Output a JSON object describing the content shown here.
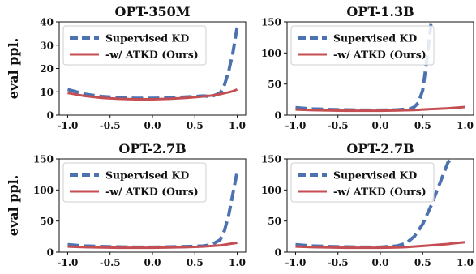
{
  "colors": {
    "supervised": "#4c72b0",
    "atkd": "#c44e52",
    "legend_border": "#cfcfcf",
    "axis": "#111111"
  },
  "chart_data": [
    {
      "type": "line",
      "title": "OPT-350M",
      "ylabel": "eval ppl.",
      "xlim": [
        -1.1,
        1.1
      ],
      "ylim": [
        0,
        40
      ],
      "xticks": [
        "-1.0",
        "-0.5",
        "0.0",
        "0.5",
        "1.0"
      ],
      "yticks": [
        "0",
        "10",
        "20",
        "30",
        "40"
      ],
      "legend": "top-left",
      "x": [
        -1.0,
        -0.8,
        -0.6,
        -0.4,
        -0.2,
        0.0,
        0.2,
        0.4,
        0.6,
        0.7,
        0.8,
        0.85,
        0.9,
        0.95,
        1.0
      ],
      "series": [
        {
          "name": "Supervised KD",
          "style": "dashed",
          "values": [
            11,
            9,
            8,
            7.5,
            7.2,
            7.2,
            7.4,
            7.8,
            8.2,
            8.0,
            9.5,
            13,
            19,
            27,
            38
          ]
        },
        {
          "name": "-w/ ATKD (Ours)",
          "style": "solid",
          "values": [
            9.5,
            8.2,
            7.4,
            7.0,
            6.8,
            6.8,
            7.0,
            7.4,
            8.0,
            8.4,
            9.0,
            9.4,
            9.8,
            10.3,
            11
          ]
        }
      ]
    },
    {
      "type": "line",
      "title": "OPT-1.3B",
      "ylabel": "",
      "xlim": [
        -1.1,
        1.1
      ],
      "ylim": [
        0,
        150
      ],
      "xticks": [
        "-1.0",
        "-0.5",
        "0.0",
        "0.5",
        "1.0"
      ],
      "yticks": [
        "0",
        "50",
        "100",
        "150"
      ],
      "legend": "top-left",
      "x": [
        -1.0,
        -0.8,
        -0.6,
        -0.4,
        -0.2,
        0.0,
        0.2,
        0.35,
        0.4,
        0.45,
        0.5,
        0.55,
        0.6,
        0.65,
        0.8,
        1.0
      ],
      "series": [
        {
          "name": "Supervised KD",
          "style": "dashed",
          "values": [
            12,
            10,
            9,
            8.5,
            8,
            8,
            8.5,
            10,
            13,
            20,
            40,
            90,
            150,
            null,
            null,
            null
          ]
        },
        {
          "name": "-w/ ATKD (Ours)",
          "style": "solid",
          "values": [
            9,
            8,
            7.5,
            7,
            7,
            7,
            7.5,
            8,
            8.2,
            8.5,
            9,
            9.3,
            9.7,
            10,
            11,
            13
          ]
        }
      ]
    },
    {
      "type": "line",
      "title": "OPT-2.7B",
      "ylabel": "eval ppl.",
      "xlim": [
        -1.1,
        1.1
      ],
      "ylim": [
        0,
        150
      ],
      "xticks": [
        "-1.0",
        "-0.5",
        "0.0",
        "0.5",
        "1.0"
      ],
      "yticks": [
        "0",
        "50",
        "100",
        "150"
      ],
      "legend": "top-left",
      "x": [
        -1.0,
        -0.8,
        -0.6,
        -0.4,
        -0.2,
        0.0,
        0.2,
        0.4,
        0.6,
        0.7,
        0.8,
        0.85,
        0.9,
        0.95,
        1.0
      ],
      "series": [
        {
          "name": "Supervised KD",
          "style": "dashed",
          "values": [
            12,
            10,
            9,
            8.5,
            8,
            8,
            8.5,
            9,
            10,
            12,
            20,
            35,
            60,
            95,
            130
          ]
        },
        {
          "name": "-w/ ATKD (Ours)",
          "style": "solid",
          "values": [
            9,
            8,
            7.5,
            7,
            7,
            7,
            7.5,
            8,
            9,
            10,
            11,
            12,
            13,
            14,
            15
          ]
        }
      ]
    },
    {
      "type": "line",
      "title": "OPT-2.7B",
      "ylabel": "",
      "xlim": [
        -1.1,
        1.1
      ],
      "ylim": [
        0,
        150
      ],
      "xticks": [
        "-1.0",
        "-0.5",
        "0.0",
        "0.5",
        "1.0"
      ],
      "yticks": [
        "0",
        "50",
        "100",
        "150"
      ],
      "legend": "top-left",
      "x": [
        -1.0,
        -0.8,
        -0.6,
        -0.4,
        -0.2,
        0.0,
        0.2,
        0.3,
        0.4,
        0.5,
        0.6,
        0.7,
        0.8,
        0.85,
        1.0
      ],
      "series": [
        {
          "name": "Supervised KD",
          "style": "dashed",
          "values": [
            12,
            10,
            9,
            8.5,
            8,
            8,
            10,
            14,
            25,
            45,
            75,
            110,
            145,
            150,
            null
          ]
        },
        {
          "name": "-w/ ATKD (Ours)",
          "style": "solid",
          "values": [
            9,
            8,
            7.5,
            7,
            7,
            7,
            7.5,
            8,
            9,
            10,
            11,
            12,
            13,
            14,
            16
          ]
        }
      ]
    }
  ]
}
